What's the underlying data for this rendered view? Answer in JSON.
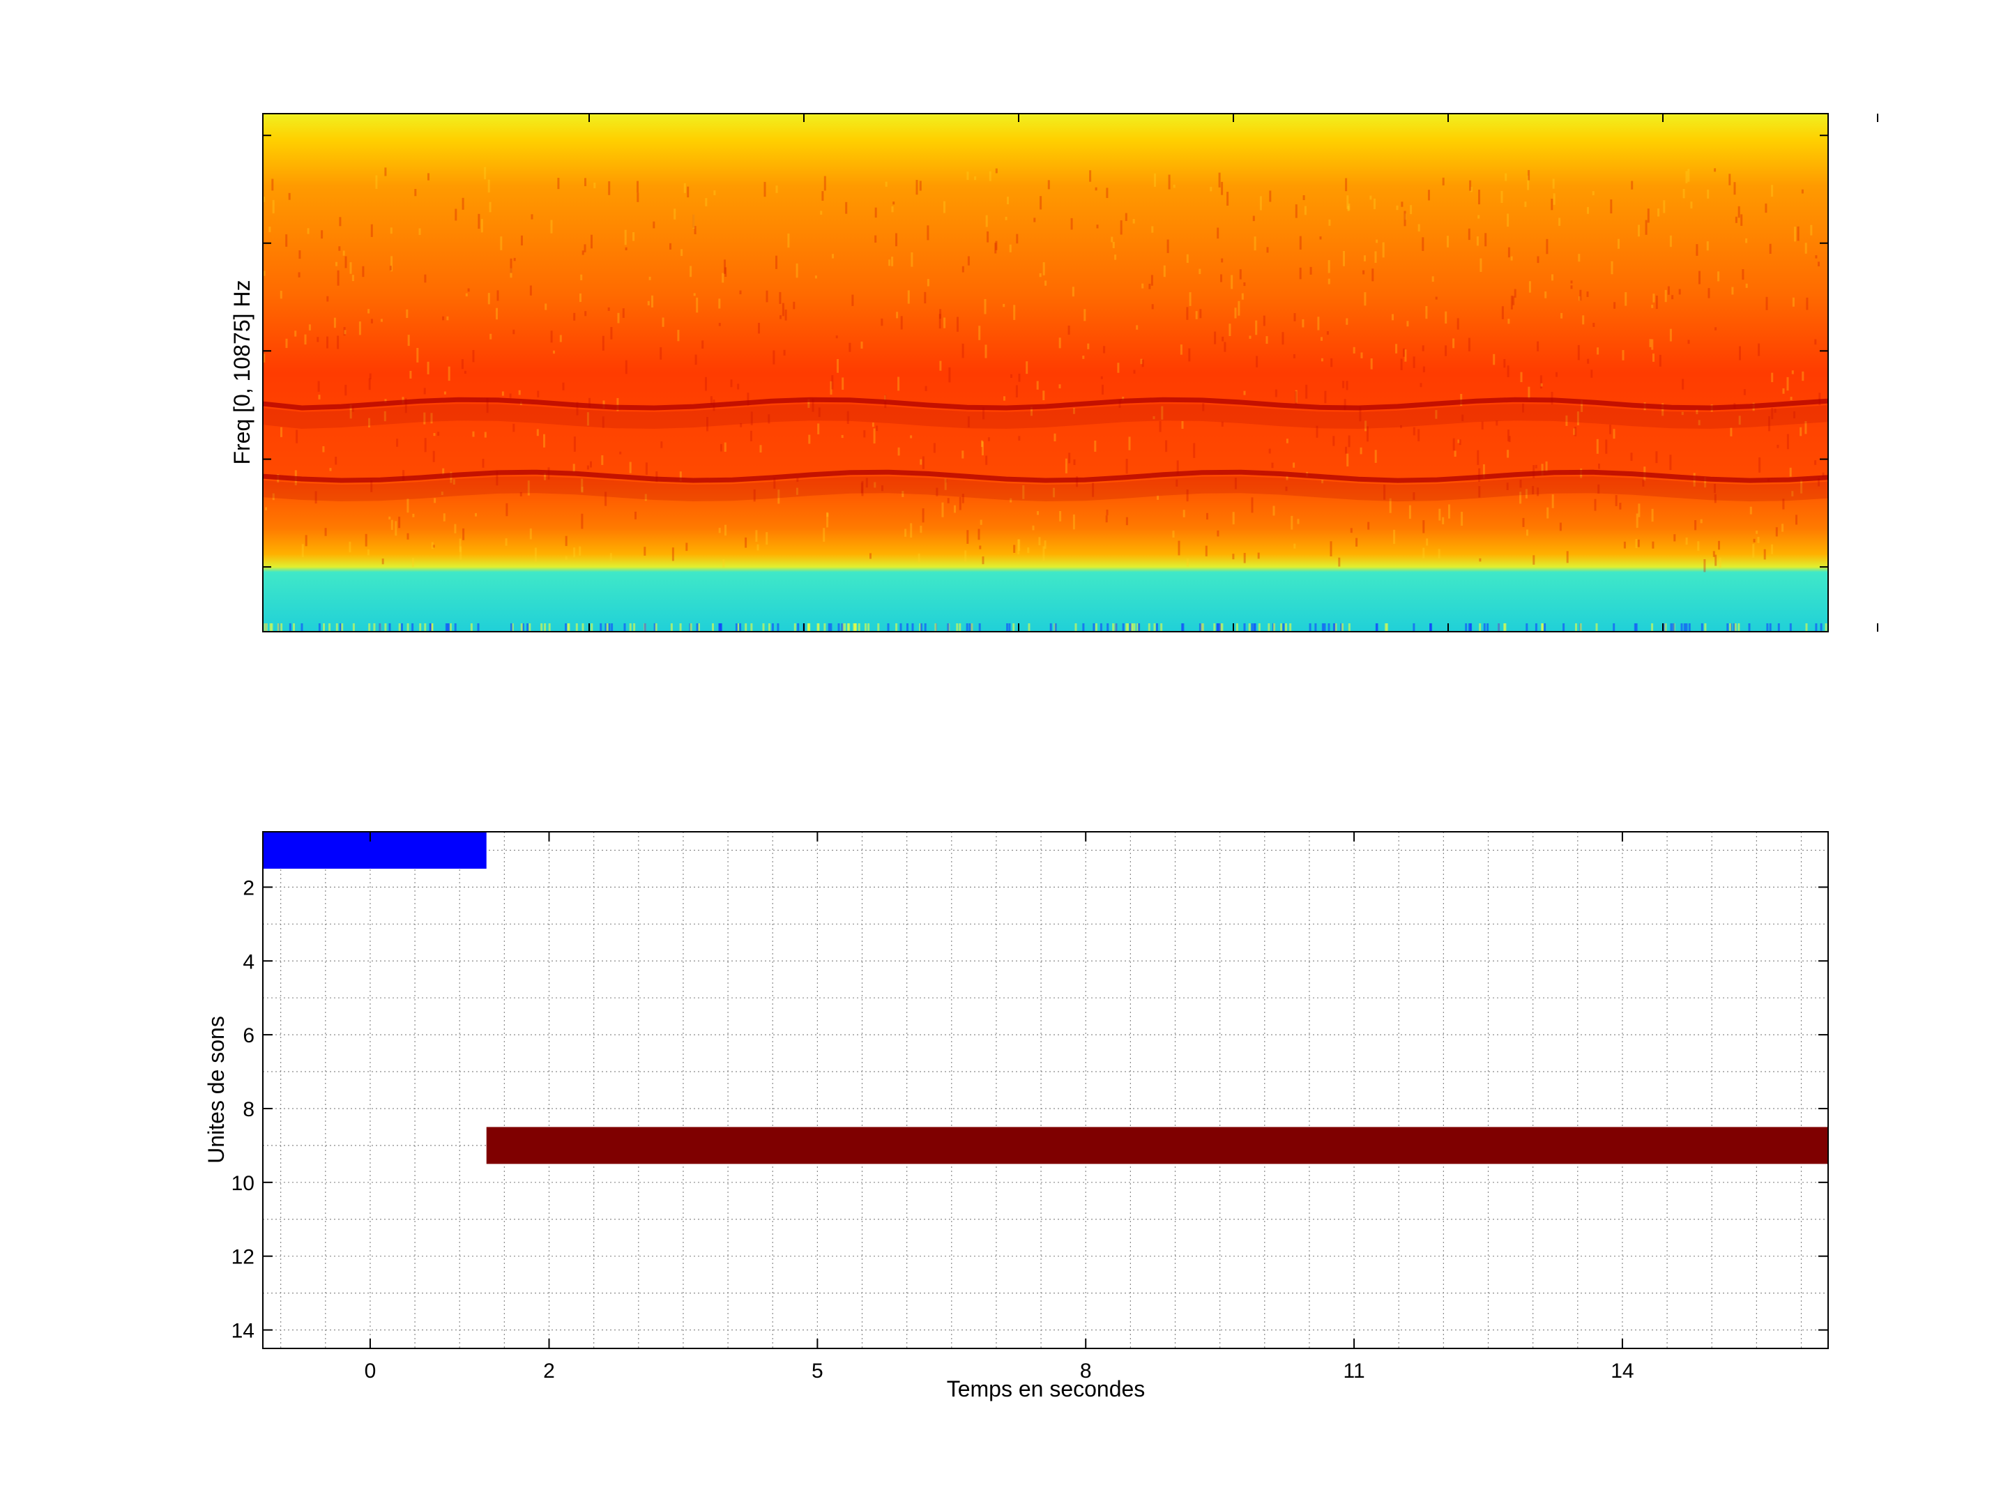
{
  "chart_data": [
    {
      "type": "heatmap",
      "panel": "spectrogram",
      "ylabel": "Freq [0, 10875] Hz",
      "xlabel": "",
      "colormap": "jet",
      "description_rows": [
        {
          "from": 0.0,
          "to": 0.12,
          "tone": "cyan-low-energy"
        },
        {
          "from": 0.12,
          "to": 0.14,
          "tone": "yellow"
        },
        {
          "from": 0.14,
          "to": 0.9,
          "tone": "red-orange"
        },
        {
          "from": 0.9,
          "to": 1.0,
          "tone": "yellow"
        }
      ],
      "ridges_fraction": [
        0.3,
        0.44
      ],
      "grid": false
    },
    {
      "type": "bar",
      "orientation": "horizontal",
      "panel": "sound-units",
      "xlabel": "Temps en secondes",
      "ylabel": "Unites de sons",
      "x_ticks": [
        "0",
        "2",
        "5",
        "8",
        "11",
        "14"
      ],
      "y_ticks": [
        "2",
        "4",
        "6",
        "8",
        "10",
        "12",
        "14"
      ],
      "xlim": [
        -1.2,
        16.3
      ],
      "ylim": [
        0.5,
        14.5
      ],
      "y_reversed": true,
      "grid": true,
      "segments": [
        {
          "unit": 1,
          "start": -1.2,
          "end": 1.3,
          "color": "#0000ff"
        },
        {
          "unit": 9,
          "start": 1.3,
          "end": 16.3,
          "color": "#7f0000"
        }
      ]
    }
  ]
}
